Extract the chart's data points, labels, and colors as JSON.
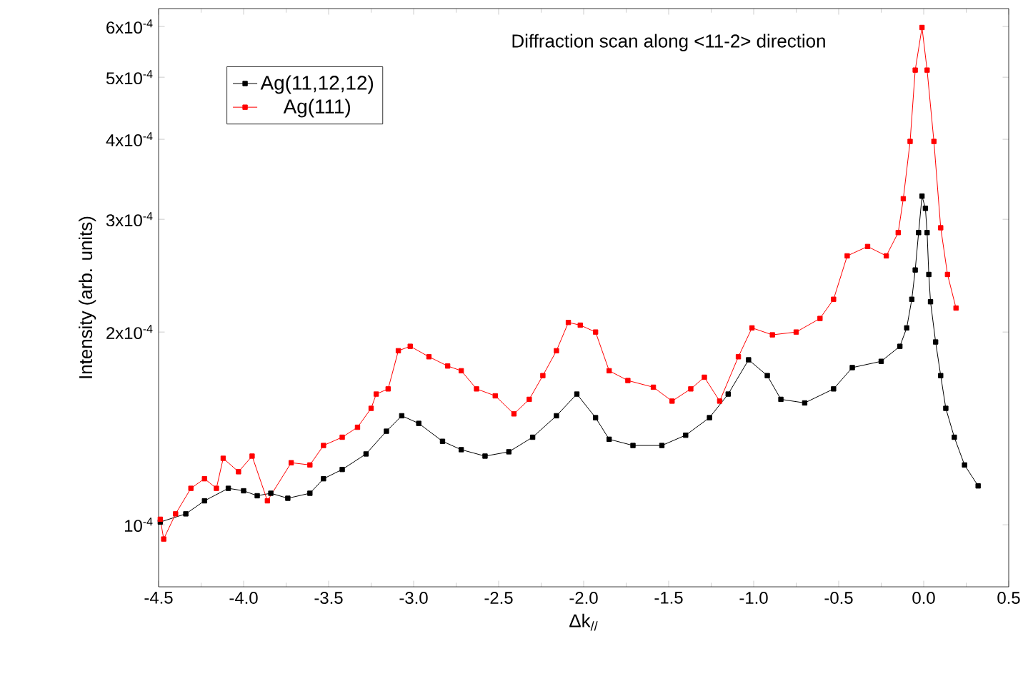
{
  "chart_data": {
    "type": "line",
    "title": "Diffraction scan along <11-2> direction",
    "xlabel": "Δk$_{//}$",
    "ylabel": "Intensity (arb. units)",
    "xlim": [
      -4.5,
      0.5
    ],
    "xticks": [
      {
        "value": -4.5,
        "label": "-4.5"
      },
      {
        "value": -4.0,
        "label": "-4.0"
      },
      {
        "value": -3.5,
        "label": "-3.5"
      },
      {
        "value": -3.0,
        "label": "-3.0"
      },
      {
        "value": -2.5,
        "label": "-2.5"
      },
      {
        "value": -2.0,
        "label": "-2.0"
      },
      {
        "value": -1.5,
        "label": "-1.5"
      },
      {
        "value": -1.0,
        "label": "-1.0"
      },
      {
        "value": -0.5,
        "label": "-0.5"
      },
      {
        "value": 0.0,
        "label": "0.0"
      },
      {
        "value": 0.5,
        "label": "0.5"
      }
    ],
    "ylim": [
      8e-05,
      0.00064
    ],
    "yticks": [
      {
        "value": 0.0001,
        "label": "10$^{-4}$"
      },
      {
        "value": 0.0002,
        "label": "2x10$^{-4}$"
      },
      {
        "value": 0.0003,
        "label": "3x10$^{-4}$"
      },
      {
        "value": 0.0004,
        "label": "4x10$^{-4}$"
      },
      {
        "value": 0.0005,
        "label": "5x10$^{-4}$"
      },
      {
        "value": 0.0006,
        "label": "6x10$^{-4}$"
      }
    ],
    "log": "y",
    "legend": "top left",
    "marker": "square",
    "line_style": "solid",
    "series": [
      {
        "name": "Ag(11,12,12)",
        "color": "#000000",
        "x": [
          -4.49,
          -4.34,
          -4.23,
          -4.09,
          -4.0,
          -3.92,
          -3.84,
          -3.74,
          -3.61,
          -3.53,
          -3.42,
          -3.28,
          -3.16,
          -3.07,
          -2.97,
          -2.83,
          -2.72,
          -2.58,
          -2.44,
          -2.3,
          -2.16,
          -2.04,
          -1.93,
          -1.85,
          -1.71,
          -1.54,
          -1.4,
          -1.26,
          -1.15,
          -1.03,
          -0.92,
          -0.84,
          -0.7,
          -0.53,
          -0.42,
          -0.25,
          -0.14,
          -0.1,
          -0.07,
          -0.05,
          -0.03,
          -0.01,
          0.01,
          0.02,
          0.03,
          0.04,
          0.07,
          0.1,
          0.13,
          0.18,
          0.24,
          0.32
        ],
        "values": [
          0.000101,
          0.000104,
          0.000109,
          0.000114,
          0.000113,
          0.000111,
          0.000112,
          0.00011,
          0.000112,
          0.000118,
          0.000122,
          0.000129,
          0.00014,
          0.000148,
          0.000144,
          0.000135,
          0.000131,
          0.000128,
          0.00013,
          0.000137,
          0.000148,
          0.00016,
          0.000147,
          0.000136,
          0.000133,
          0.000133,
          0.000138,
          0.000147,
          0.00016,
          0.000181,
          0.000171,
          0.000157,
          0.000155,
          0.000163,
          0.000176,
          0.00018,
          0.00019,
          0.000203,
          0.000225,
          0.00025,
          0.000286,
          0.000326,
          0.000312,
          0.000286,
          0.000246,
          0.000223,
          0.000193,
          0.000171,
          0.000152,
          0.000137,
          0.000124,
          0.000115
        ]
      },
      {
        "name": "Ag(111)",
        "color": "#ff0000",
        "x": [
          -4.49,
          -4.47,
          -4.4,
          -4.31,
          -4.23,
          -4.16,
          -4.12,
          -4.03,
          -3.95,
          -3.86,
          -3.72,
          -3.61,
          -3.53,
          -3.42,
          -3.33,
          -3.25,
          -3.22,
          -3.15,
          -3.09,
          -3.02,
          -2.91,
          -2.8,
          -2.72,
          -2.63,
          -2.52,
          -2.41,
          -2.32,
          -2.24,
          -2.16,
          -2.09,
          -2.02,
          -1.93,
          -1.85,
          -1.74,
          -1.59,
          -1.48,
          -1.37,
          -1.29,
          -1.2,
          -1.09,
          -1.01,
          -0.89,
          -0.75,
          -0.61,
          -0.53,
          -0.45,
          -0.33,
          -0.22,
          -0.15,
          -0.12,
          -0.08,
          -0.05,
          -0.01,
          0.02,
          0.06,
          0.1,
          0.14,
          0.19
        ],
        "values": [
          0.000102,
          9.5e-05,
          0.000104,
          0.000114,
          0.000118,
          0.000114,
          0.000127,
          0.000121,
          0.000128,
          0.000109,
          0.000125,
          0.000124,
          0.000133,
          0.000137,
          0.000142,
          0.000152,
          0.00016,
          0.000163,
          0.000187,
          0.00019,
          0.000183,
          0.000177,
          0.000174,
          0.000163,
          0.000159,
          0.000149,
          0.000157,
          0.000171,
          0.000187,
          0.000207,
          0.000205,
          0.0002,
          0.000174,
          0.000168,
          0.000164,
          0.000156,
          0.000163,
          0.00017,
          0.000156,
          0.000183,
          0.000203,
          0.000198,
          0.0002,
          0.00021,
          0.000225,
          0.000263,
          0.000272,
          0.000263,
          0.000286,
          0.000323,
          0.000397,
          0.000513,
          0.000598,
          0.000513,
          0.000397,
          0.000291,
          0.000246,
          0.000218
        ]
      }
    ]
  }
}
